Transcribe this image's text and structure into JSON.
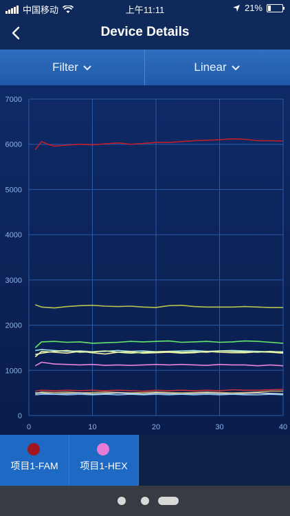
{
  "status_bar": {
    "carrier": "中国移动",
    "time": "上午11:11",
    "battery_text": "21%",
    "battery_level": 0.21
  },
  "header": {
    "title": "Device Details",
    "back_icon": "chevron-left-icon"
  },
  "toolbar": {
    "filter_label": "Filter",
    "scale_label": "Linear"
  },
  "chart_data": {
    "type": "line",
    "title": "",
    "xlabel": "",
    "ylabel": "",
    "xlim": [
      0,
      40
    ],
    "ylim": [
      0,
      7000
    ],
    "x_ticks": [
      0,
      10,
      20,
      30,
      40
    ],
    "y_ticks": [
      0,
      1000,
      2000,
      3000,
      4000,
      5000,
      6000,
      7000
    ],
    "grid": true,
    "series": [
      {
        "color": "#c21e2a",
        "x": [
          1,
          2,
          3,
          4,
          5,
          6,
          8,
          10,
          12,
          14,
          16,
          18,
          20,
          22,
          24,
          26,
          28,
          30,
          32,
          34,
          36,
          38,
          40
        ],
        "values": [
          5880,
          6060,
          6000,
          5960,
          5970,
          5980,
          6000,
          5990,
          6010,
          6030,
          6000,
          6020,
          6040,
          6040,
          6060,
          6080,
          6090,
          6100,
          6120,
          6110,
          6080,
          6080,
          6070
        ]
      },
      {
        "color": "#b6c64a",
        "x": [
          1,
          2,
          4,
          6,
          8,
          10,
          12,
          14,
          16,
          18,
          20,
          22,
          24,
          26,
          28,
          30,
          32,
          34,
          36,
          38,
          40
        ],
        "values": [
          2450,
          2400,
          2380,
          2410,
          2430,
          2440,
          2420,
          2410,
          2420,
          2400,
          2390,
          2430,
          2440,
          2410,
          2400,
          2400,
          2400,
          2410,
          2400,
          2390,
          2390
        ]
      },
      {
        "color": "#65e96a",
        "x": [
          1,
          2,
          4,
          6,
          8,
          10,
          12,
          14,
          16,
          18,
          20,
          22,
          24,
          26,
          28,
          30,
          32,
          34,
          36,
          38,
          40
        ],
        "values": [
          1500,
          1630,
          1640,
          1620,
          1630,
          1600,
          1610,
          1620,
          1640,
          1630,
          1640,
          1650,
          1620,
          1630,
          1640,
          1620,
          1630,
          1650,
          1640,
          1620,
          1600
        ]
      },
      {
        "color": "#9fe3e8",
        "x": [
          1,
          2,
          4,
          6,
          8,
          10,
          12,
          14,
          16,
          18,
          20,
          22,
          24,
          26,
          28,
          30,
          32,
          34,
          36,
          38,
          40
        ],
        "values": [
          1440,
          1460,
          1440,
          1420,
          1430,
          1410,
          1420,
          1440,
          1420,
          1430,
          1410,
          1420,
          1430,
          1440,
          1420,
          1430,
          1440,
          1430,
          1420,
          1410,
          1410
        ]
      },
      {
        "color": "#f2f0a3",
        "x": [
          1,
          2,
          4,
          6,
          8,
          10,
          12,
          14,
          16,
          18,
          20,
          22,
          24,
          26,
          28,
          30,
          32,
          34,
          36,
          38,
          40
        ],
        "values": [
          1300,
          1420,
          1400,
          1380,
          1420,
          1390,
          1360,
          1400,
          1410,
          1380,
          1390,
          1400,
          1380,
          1390,
          1420,
          1400,
          1390,
          1390,
          1410,
          1400,
          1380
        ]
      },
      {
        "color": "#e1f7a8",
        "x": [
          1,
          2,
          4,
          6,
          8,
          10,
          12,
          14,
          16,
          18,
          20,
          22,
          24,
          26,
          28,
          30,
          32,
          34,
          36,
          38,
          40
        ],
        "values": [
          1350,
          1380,
          1420,
          1440,
          1400,
          1410,
          1430,
          1400,
          1380,
          1400,
          1410,
          1420,
          1400,
          1410,
          1400,
          1430,
          1420,
          1410,
          1400,
          1420,
          1400
        ]
      },
      {
        "color": "#e883e1",
        "x": [
          1,
          2,
          4,
          6,
          8,
          10,
          12,
          14,
          16,
          18,
          20,
          22,
          24,
          26,
          28,
          30,
          32,
          34,
          36,
          38,
          40
        ],
        "values": [
          1100,
          1180,
          1140,
          1130,
          1120,
          1130,
          1110,
          1120,
          1110,
          1120,
          1130,
          1120,
          1130,
          1120,
          1110,
          1130,
          1120,
          1120,
          1100,
          1120,
          1100
        ]
      },
      {
        "color": "#c9303a",
        "x": [
          1,
          2,
          4,
          6,
          8,
          10,
          12,
          14,
          16,
          18,
          20,
          22,
          24,
          26,
          28,
          30,
          32,
          34,
          36,
          38,
          40
        ],
        "values": [
          540,
          560,
          550,
          560,
          550,
          560,
          550,
          560,
          550,
          540,
          560,
          550,
          560,
          550,
          560,
          550,
          570,
          560,
          560,
          570,
          580
        ]
      },
      {
        "color": "#c3a86a",
        "x": [
          1,
          2,
          4,
          6,
          8,
          10,
          12,
          14,
          16,
          18,
          20,
          22,
          24,
          26,
          28,
          30,
          32,
          34,
          36,
          38,
          40
        ],
        "values": [
          480,
          520,
          510,
          520,
          500,
          510,
          520,
          510,
          500,
          510,
          520,
          510,
          500,
          510,
          520,
          510,
          500,
          510,
          520,
          540,
          540
        ]
      },
      {
        "color": "#cfd3d6",
        "x": [
          1,
          2,
          4,
          6,
          8,
          10,
          12,
          14,
          16,
          18,
          20,
          22,
          24,
          26,
          28,
          30,
          32,
          34,
          36,
          38,
          40
        ],
        "values": [
          500,
          500,
          480,
          490,
          500,
          480,
          490,
          500,
          490,
          480,
          500,
          490,
          480,
          490,
          500,
          490,
          480,
          490,
          500,
          490,
          480
        ]
      },
      {
        "color": "#8fc7f0",
        "x": [
          1,
          2,
          4,
          6,
          8,
          10,
          12,
          14,
          16,
          18,
          20,
          22,
          24,
          26,
          28,
          30,
          32,
          34,
          36,
          38,
          40
        ],
        "values": [
          460,
          470,
          470,
          460,
          470,
          460,
          470,
          460,
          470,
          460,
          470,
          460,
          470,
          460,
          470,
          460,
          470,
          460,
          460,
          470,
          460
        ]
      }
    ]
  },
  "legend": {
    "items": [
      {
        "label": "项目1-FAM",
        "color": "#a3161f"
      },
      {
        "label": "项目1-HEX",
        "color": "#e87bd6"
      }
    ]
  },
  "pager": {
    "active_index": 2
  }
}
